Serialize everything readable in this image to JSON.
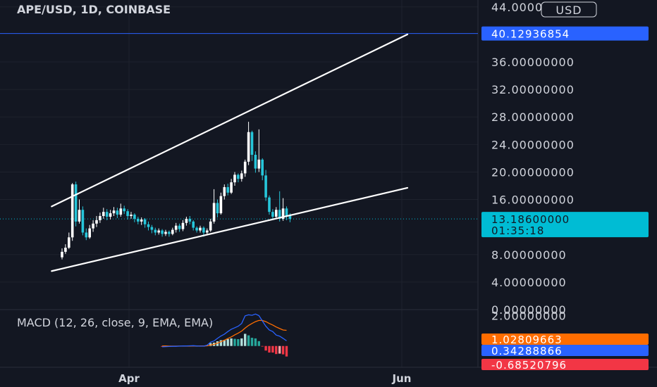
{
  "chart_data": {
    "type": "candlestick",
    "title": "APE/USD, 1D, COINBASE",
    "currency": "USD",
    "price_axis": {
      "ticks": [
        "44.00000000",
        "36.00000000",
        "32.00000000",
        "28.00000000",
        "24.00000000",
        "20.00000000",
        "16.00000000",
        "8.00000000",
        "4.00000000",
        "0.00000000"
      ],
      "tick_values": [
        44,
        36,
        32,
        28,
        24,
        20,
        16,
        8,
        4,
        0
      ],
      "ylim": [
        0,
        45
      ]
    },
    "x_ticks": [
      "Apr",
      "Jun"
    ],
    "horizontal_line": {
      "value": 40.12936854,
      "label": "40.12936854",
      "color": "#2962ff"
    },
    "last_price": {
      "value": 13.186,
      "label": "13.18600000",
      "countdown": "01:35:18",
      "color": "#00bcd4"
    },
    "trendlines": [
      {
        "points": [
          [
            -3,
            15.0
          ],
          [
            100,
            40.0
          ]
        ],
        "color": "#ffffff"
      },
      {
        "points": [
          [
            -3,
            5.6
          ],
          [
            100,
            17.7
          ]
        ],
        "color": "#ffffff"
      }
    ],
    "candles": [
      [
        7.6,
        8.4,
        7.3,
        8.9
      ],
      [
        8.4,
        9.0,
        8.1,
        9.5
      ],
      [
        9.0,
        10.5,
        8.8,
        11.2
      ],
      [
        10.5,
        18.2,
        10.0,
        18.4
      ],
      [
        18.2,
        12.8,
        12.1,
        18.6
      ],
      [
        12.8,
        14.5,
        12.5,
        16.0
      ],
      [
        14.5,
        11.2,
        10.8,
        15.0
      ],
      [
        11.2,
        10.5,
        10.1,
        11.8
      ],
      [
        10.5,
        11.8,
        10.3,
        12.3
      ],
      [
        11.8,
        12.5,
        11.3,
        13.0
      ],
      [
        12.5,
        13.0,
        12.0,
        13.6
      ],
      [
        13.0,
        13.6,
        12.6,
        14.1
      ],
      [
        13.6,
        14.2,
        13.2,
        14.8
      ],
      [
        14.2,
        13.5,
        13.0,
        14.6
      ],
      [
        13.5,
        14.0,
        13.1,
        14.5
      ],
      [
        14.0,
        14.4,
        13.6,
        14.9
      ],
      [
        14.4,
        13.8,
        13.3,
        14.8
      ],
      [
        13.8,
        14.7,
        13.5,
        15.4
      ],
      [
        14.7,
        14.3,
        13.9,
        15.1
      ],
      [
        14.3,
        13.6,
        13.1,
        14.6
      ],
      [
        13.6,
        13.8,
        13.2,
        14.2
      ],
      [
        13.8,
        13.2,
        12.7,
        14.0
      ],
      [
        13.2,
        12.8,
        12.4,
        13.5
      ],
      [
        12.8,
        13.1,
        12.3,
        13.4
      ],
      [
        13.1,
        12.4,
        11.9,
        13.3
      ],
      [
        12.4,
        12.0,
        11.5,
        12.8
      ],
      [
        12.0,
        11.6,
        11.1,
        12.3
      ],
      [
        11.6,
        11.2,
        10.8,
        11.9
      ],
      [
        11.2,
        11.5,
        10.9,
        11.8
      ],
      [
        11.5,
        11.0,
        10.6,
        11.7
      ],
      [
        11.0,
        11.3,
        10.7,
        11.6
      ],
      [
        11.3,
        11.0,
        10.6,
        11.5
      ],
      [
        11.0,
        11.6,
        10.8,
        11.9
      ],
      [
        11.6,
        12.2,
        11.2,
        12.6
      ],
      [
        12.2,
        11.7,
        11.3,
        12.5
      ],
      [
        11.7,
        12.6,
        11.4,
        13.0
      ],
      [
        12.6,
        13.2,
        12.2,
        13.5
      ],
      [
        13.2,
        12.8,
        12.4,
        13.6
      ],
      [
        12.8,
        11.9,
        11.5,
        13.0
      ],
      [
        11.9,
        11.5,
        11.2,
        12.1
      ],
      [
        11.5,
        11.9,
        11.2,
        12.2
      ],
      [
        11.9,
        11.2,
        10.6,
        12.1
      ],
      [
        11.2,
        11.5,
        10.9,
        11.8
      ],
      [
        11.5,
        12.8,
        11.3,
        13.2
      ],
      [
        12.8,
        15.5,
        12.5,
        17.5
      ],
      [
        15.5,
        14.0,
        13.4,
        16.0
      ],
      [
        14.0,
        16.5,
        13.8,
        17.0
      ],
      [
        16.5,
        17.8,
        16.0,
        18.2
      ],
      [
        17.8,
        17.0,
        16.6,
        18.3
      ],
      [
        17.0,
        18.5,
        16.8,
        19.0
      ],
      [
        18.5,
        19.6,
        18.0,
        20.0
      ],
      [
        19.6,
        19.0,
        18.5,
        19.8
      ],
      [
        19.0,
        19.8,
        18.6,
        20.2
      ],
      [
        19.8,
        21.5,
        19.3,
        21.8
      ],
      [
        21.5,
        25.8,
        21.0,
        27.3
      ],
      [
        25.8,
        22.5,
        21.6,
        26.0
      ],
      [
        22.5,
        20.5,
        19.9,
        23.0
      ],
      [
        20.5,
        21.8,
        20.0,
        26.2
      ],
      [
        21.8,
        19.5,
        18.8,
        22.0
      ],
      [
        19.5,
        16.3,
        15.8,
        20.3
      ],
      [
        16.3,
        14.2,
        13.8,
        16.6
      ],
      [
        14.2,
        13.5,
        13.0,
        14.6
      ],
      [
        13.5,
        14.5,
        13.2,
        14.9
      ],
      [
        14.5,
        13.2,
        12.8,
        17.2
      ],
      [
        13.2,
        14.7,
        12.9,
        16.2
      ],
      [
        14.7,
        13.6,
        13.0,
        15.0
      ],
      [
        13.6,
        13.186,
        12.7,
        14.0
      ]
    ],
    "macd": {
      "label": "MACD (12, 26, close, 9, EMA, EMA)",
      "axis_tick": "2.00000000",
      "axis_tick_value": 2.0,
      "ylim": [
        -1.4,
        2.3
      ],
      "tags": [
        {
          "value": 1.02809663,
          "label": "1.02809663",
          "color": "#ff6d00"
        },
        {
          "value": 0.34288866,
          "label": "0.34288866",
          "color": "#2962ff"
        },
        {
          "value": -0.68520796,
          "label": "-0.68520796",
          "color": "#f23645"
        }
      ],
      "start_index": 29,
      "macd_line": [
        -0.05,
        -0.04,
        -0.03,
        -0.02,
        -0.02,
        -0.01,
        0.0,
        0.0,
        0.01,
        0.02,
        0.0,
        -0.01,
        -0.01,
        0.05,
        0.25,
        0.33,
        0.5,
        0.66,
        0.78,
        0.95,
        1.1,
        1.2,
        1.3,
        1.48,
        1.98,
        2.05,
        2.02,
        2.1,
        2.0,
        1.65,
        1.3,
        1.05,
        0.95,
        0.72,
        0.65,
        0.5,
        0.34
      ],
      "signal_line": [
        0.0,
        0.0,
        -0.01,
        -0.01,
        -0.01,
        -0.01,
        -0.01,
        -0.01,
        -0.01,
        0.0,
        0.0,
        0.0,
        0.0,
        0.01,
        0.06,
        0.11,
        0.19,
        0.28,
        0.38,
        0.49,
        0.6,
        0.73,
        0.85,
        0.98,
        1.18,
        1.35,
        1.48,
        1.6,
        1.68,
        1.68,
        1.6,
        1.48,
        1.38,
        1.25,
        1.15,
        1.05,
        1.03
      ],
      "histogram": [
        -0.05,
        -0.04,
        -0.02,
        -0.01,
        -0.01,
        0.0,
        0.01,
        0.01,
        0.02,
        0.02,
        0.0,
        -0.01,
        -0.01,
        0.04,
        0.19,
        0.22,
        0.31,
        0.38,
        0.4,
        0.46,
        0.5,
        0.47,
        0.45,
        0.5,
        0.8,
        0.7,
        0.54,
        0.5,
        0.32,
        -0.03,
        -0.3,
        -0.43,
        -0.43,
        -0.53,
        -0.5,
        -0.55,
        -0.69
      ]
    }
  }
}
